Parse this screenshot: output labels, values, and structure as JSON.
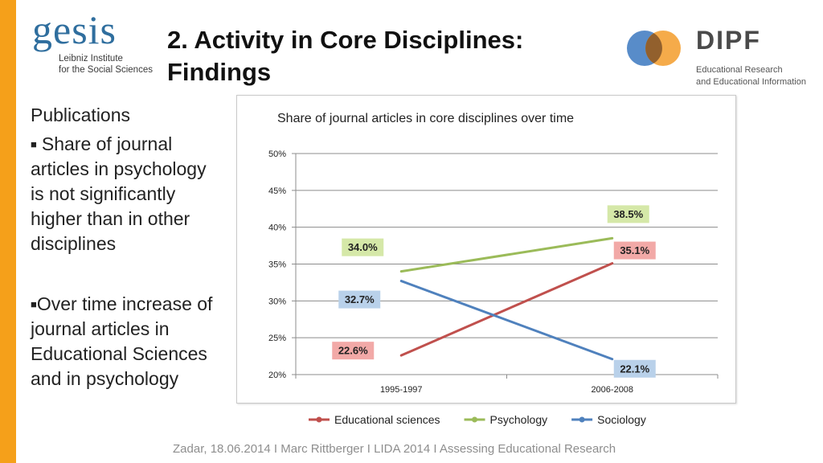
{
  "slide": {
    "title_line1": "2. Activity in Core Disciplines:",
    "title_line2": "Findings",
    "accent_color": "#f5a01a"
  },
  "logos": {
    "gesis": {
      "name": "gesis",
      "line1": "Leibniz Institute",
      "line2": "for the Social Sciences"
    },
    "dipf": {
      "name": "DIPF",
      "line1": "Educational Research",
      "line2": "and Educational Information"
    }
  },
  "content": {
    "heading": "Publications",
    "bullet1": "Share of journal articles in psychology is not significantly higher than in other disciplines",
    "bullet2": "Over time increase of journal articles in Educational Sciences   and in psychology"
  },
  "chart_data": {
    "type": "line",
    "title": "Share of journal articles in core disciplines over time",
    "categories": [
      "1995-1997",
      "2006-2008"
    ],
    "y_ticks": [
      "20%",
      "25%",
      "30%",
      "35%",
      "40%",
      "45%",
      "50%"
    ],
    "ylim": [
      20,
      50
    ],
    "grid": true,
    "legend_position": "bottom",
    "series": [
      {
        "name": "Educational sciences",
        "values": [
          22.6,
          35.1
        ],
        "labels": [
          "22.6%",
          "35.1%"
        ],
        "color": "#c0504d",
        "label_bg": "#f2a9a7"
      },
      {
        "name": "Psychology",
        "values": [
          34.0,
          38.5
        ],
        "labels": [
          "34.0%",
          "38.5%"
        ],
        "color": "#9bbb59",
        "label_bg": "#d5e8a8"
      },
      {
        "name": "Sociology",
        "values": [
          32.7,
          22.1
        ],
        "labels": [
          "32.7%",
          "22.1%"
        ],
        "color": "#4f81bd",
        "label_bg": "#b9d1ea"
      }
    ]
  },
  "footer": {
    "text": "Zadar, 18.06.2014   I   Marc Rittberger   I   LIDA 2014   I   Assessing Educational Research"
  }
}
